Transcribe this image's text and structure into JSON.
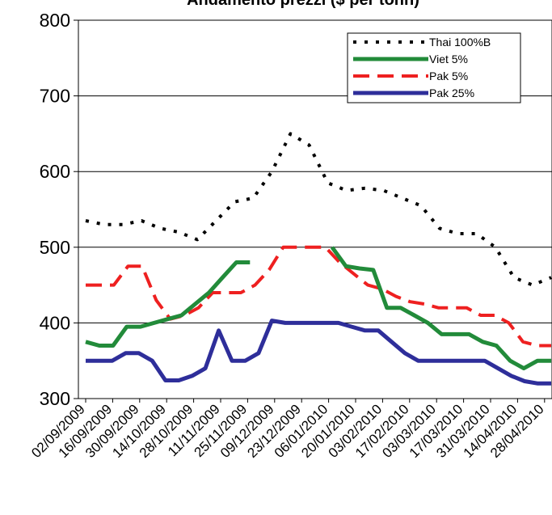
{
  "chart_data": {
    "type": "line",
    "title": "Andamento prezzi ($ per tonn)",
    "xlabel": "",
    "ylabel": "",
    "ylim": [
      300,
      800
    ],
    "yticks": [
      300,
      400,
      500,
      600,
      700,
      800
    ],
    "grid": "horizontal",
    "legend_position": "top-right",
    "x_tick_labels": [
      "02/09/2009",
      "16/09/2009",
      "30/09/2009",
      "14/10/2009",
      "28/10/2009",
      "11/11/2009",
      "25/11/2009",
      "09/12/2009",
      "23/12/2009",
      "06/01/2010",
      "20/01/2010",
      "03/02/2010",
      "17/02/2010",
      "03/03/2010",
      "17/03/2010",
      "31/03/2010",
      "14/04/2010",
      "28/04/2010"
    ],
    "series": [
      {
        "name": "Thai 100%B",
        "color": "#000000",
        "style": "dotted",
        "values": [
          535,
          530,
          530,
          535,
          525,
          520,
          510,
          535,
          560,
          565,
          600,
          650,
          635,
          585,
          575,
          578,
          575,
          565,
          555,
          525,
          518,
          518,
          500,
          460,
          450,
          460
        ]
      },
      {
        "name": "Viet 5%",
        "color": "#228B3A",
        "style": "solid",
        "values": [
          375,
          370,
          370,
          395,
          395,
          400,
          405,
          410,
          425,
          440,
          460,
          480,
          480,
          null,
          null,
          null,
          null,
          null,
          500,
          475,
          472,
          470,
          420,
          420,
          410,
          400,
          385,
          385,
          385,
          375,
          370,
          350,
          340,
          350,
          350
        ]
      },
      {
        "name": "Pak 5%",
        "color": "#EE2020",
        "style": "dashed",
        "values": [
          450,
          450,
          450,
          475,
          475,
          430,
          405,
          410,
          420,
          440,
          440,
          440,
          450,
          470,
          500,
          500,
          500,
          500,
          480,
          465,
          450,
          445,
          435,
          428,
          425,
          420,
          420,
          420,
          410,
          410,
          400,
          375,
          370,
          370
        ]
      },
      {
        "name": "Pak 25%",
        "color": "#2E2E9A",
        "style": "solid",
        "values": [
          350,
          350,
          350,
          360,
          360,
          350,
          324,
          324,
          330,
          340,
          390,
          350,
          350,
          360,
          403,
          400,
          400,
          400,
          400,
          400,
          395,
          390,
          390,
          375,
          360,
          350,
          350,
          350,
          350,
          350,
          350,
          340,
          330,
          323,
          320,
          320
        ]
      }
    ]
  }
}
